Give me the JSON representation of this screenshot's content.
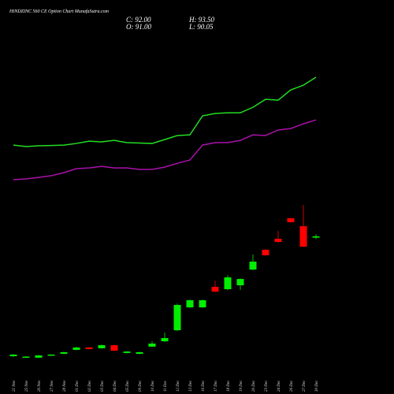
{
  "chart_data": {
    "type": "candlestick",
    "title": "HINDZINC 560 CE Option Chart MunafaSutra.com",
    "ohlc_labels": [
      "C: 92.00",
      "H: 93.50",
      "O: 91.00",
      "L: 90.05"
    ],
    "categories": [
      "21 Nov",
      "25 Nov",
      "26 Nov",
      "27 Nov",
      "28 Nov",
      "01 Dec",
      "02 Dec",
      "03 Dec",
      "04 Dec",
      "05 Dec",
      "09 Dec",
      "10 Dec",
      "11 Dec",
      "12 Dec",
      "13 Dec",
      "16 Dec",
      "17 Dec",
      "18 Dec",
      "19 Dec",
      "20 Dec",
      "23 Dec",
      "24 Dec",
      "26 Dec",
      "27 Dec",
      "30 Dec"
    ],
    "open": [
      2.9,
      2.0,
      1.8,
      3.5,
      4.7,
      7.6,
      9.4,
      8.8,
      11.1,
      5.3,
      4.7,
      10.0,
      14.0,
      22.2,
      39.2,
      39.2,
      54.4,
      52.7,
      55.6,
      67.3,
      82.0,
      90.2,
      105.4,
      99.5,
      91
    ],
    "high": [
      4.5,
      2.9,
      3.8,
      4.3,
      6.2,
      9.8,
      9.8,
      11.4,
      11.4,
      6.7,
      6.2,
      14.0,
      20.5,
      42.0,
      45.0,
      45.0,
      59.1,
      63.2,
      60.7,
      78.5,
      82.4,
      96.0,
      105.8,
      115.3,
      93.5
    ],
    "low": [
      2.5,
      1.8,
      1.5,
      3.2,
      4.4,
      7.3,
      7.9,
      8.5,
      6.7,
      5.0,
      4.4,
      9.7,
      13.5,
      21.5,
      38.8,
      38.8,
      50.5,
      52.0,
      52.1,
      66.8,
      77.5,
      87.4,
      102.1,
      84.0,
      90.05
    ],
    "close": [
      4.1,
      2.6,
      3.5,
      4.1,
      5.9,
      9.4,
      8.2,
      11.1,
      7.0,
      6.4,
      5.9,
      12.3,
      16.4,
      41.0,
      44.5,
      44.5,
      50.9,
      61.5,
      60.3,
      73.2,
      77.9,
      87.8,
      102.5,
      84.3,
      92
    ],
    "up_color": "#00ee00",
    "down_color": "#ff0000",
    "series": [
      {
        "color": "#22dd22",
        "values": [
          159.8,
          158.7,
          159.3,
          159.5,
          159.8,
          161.0,
          162.7,
          162.2,
          163.3,
          161.6,
          161.3,
          161.0,
          163.9,
          166.9,
          167.4,
          181.5,
          183.3,
          183.8,
          183.8,
          187.9,
          193.8,
          193.2,
          200.8,
          204.3,
          210.2
        ]
      },
      {
        "color": "#aa11aa",
        "values": [
          134.1,
          134.7,
          135.8,
          137.0,
          139.3,
          142.3,
          142.8,
          144.0,
          142.8,
          142.8,
          141.7,
          141.7,
          143.4,
          146.3,
          148.7,
          159.8,
          161.6,
          161.6,
          163.3,
          167.4,
          166.9,
          171.0,
          172.1,
          175.6,
          178.5
        ]
      }
    ],
    "ylim": [
      0,
      260
    ]
  }
}
